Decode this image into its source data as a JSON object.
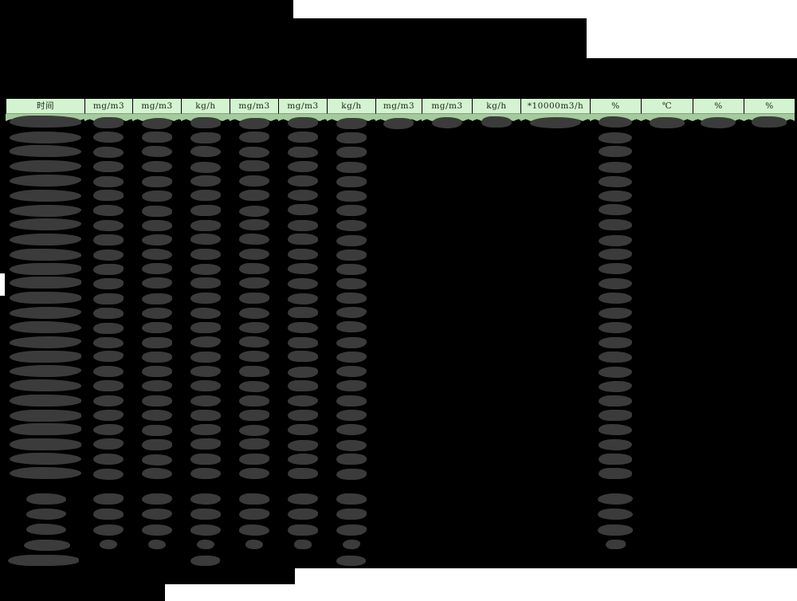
{
  "page": {
    "background": "#ffffff"
  },
  "redaction": {
    "block_color": "#000000",
    "blob_color": "#3b3b3b",
    "note": "title area, footer area and all cell values are blacked out"
  },
  "table": {
    "header": {
      "columns": [
        "时间",
        "mg/m3",
        "mg/m3",
        "kg/h",
        "mg/m3",
        "mg/m3",
        "kg/h",
        "mg/m3",
        "mg/m3",
        "kg/h",
        "*10000m3/h",
        "%",
        "℃",
        "%",
        "%"
      ],
      "bg_color": "#d2f4ce",
      "edge_color": "#a4cb9c",
      "border_color": "#000000",
      "text_color": "#1b241b"
    },
    "body": {
      "redacted": true,
      "data_row_count": 25,
      "summary_row_count": 4,
      "total_row_count": 1,
      "columns_redacted_every_row": [
        0,
        1,
        2,
        3,
        4,
        5,
        6,
        11
      ],
      "columns_redacted_first_row_only": [
        7,
        8,
        9,
        10,
        12,
        13,
        14
      ],
      "summary_row_redacted_columns": [
        0,
        1,
        2,
        3,
        4,
        5,
        6,
        11
      ],
      "total_row_redacted_columns": [
        0,
        3,
        6
      ]
    }
  }
}
